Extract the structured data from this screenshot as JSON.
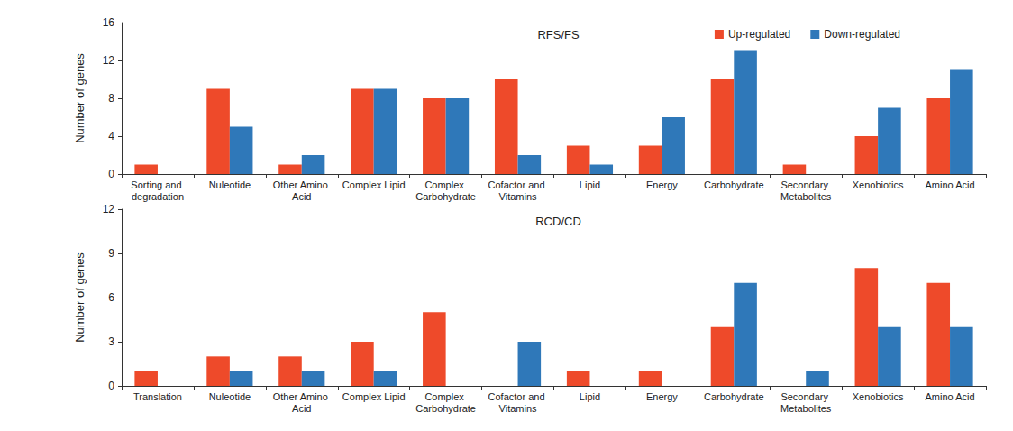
{
  "chart_data": [
    {
      "type": "bar",
      "title": "RFS/FS",
      "y_label": "Number of genes",
      "categories": [
        "Sorting and degradation",
        "Nuleotide",
        "Other Amino Acid",
        "Complex Lipid",
        "Complex Carbohydrate",
        "Cofactor and Vitamins",
        "Lipid",
        "Energy",
        "Carbohydrate",
        "Secondary Metabolites",
        "Xenobiotics",
        "Amino Acid"
      ],
      "series": [
        {
          "name": "Up-regulated",
          "color": "#ee4a2a",
          "values": [
            1,
            9,
            1,
            9,
            8,
            10,
            3,
            3,
            10,
            1,
            4,
            8
          ]
        },
        {
          "name": "Down-regulated",
          "color": "#2f78b9",
          "values": [
            0,
            5,
            2,
            9,
            8,
            2,
            1,
            6,
            13,
            0,
            7,
            11
          ]
        }
      ],
      "ylim": [
        0,
        16
      ],
      "yticks": [
        0,
        4,
        8,
        12,
        16
      ],
      "grid": false,
      "legend": "upper right"
    },
    {
      "type": "bar",
      "title": "RCD/CD",
      "y_label": "Number of genes",
      "categories": [
        "Translation",
        "Nuleotide",
        "Other Amino Acid",
        "Complex Lipid",
        "Complex Carbohydrate",
        "Cofactor and Vitamins",
        "Lipid",
        "Energy",
        "Carbohydrate",
        "Secondary Metabolites",
        "Xenobiotics",
        "Amino Acid"
      ],
      "series": [
        {
          "name": "Up-regulated",
          "color": "#ee4a2a",
          "values": [
            1,
            2,
            2,
            3,
            5,
            0,
            1,
            1,
            4,
            0,
            8,
            7
          ]
        },
        {
          "name": "Down-regulated",
          "color": "#2f78b9",
          "values": [
            0,
            1,
            1,
            1,
            0,
            3,
            0,
            0,
            7,
            1,
            4,
            4
          ]
        }
      ],
      "ylim": [
        0,
        12
      ],
      "yticks": [
        0,
        3,
        6,
        9,
        12
      ],
      "grid": false
    }
  ]
}
